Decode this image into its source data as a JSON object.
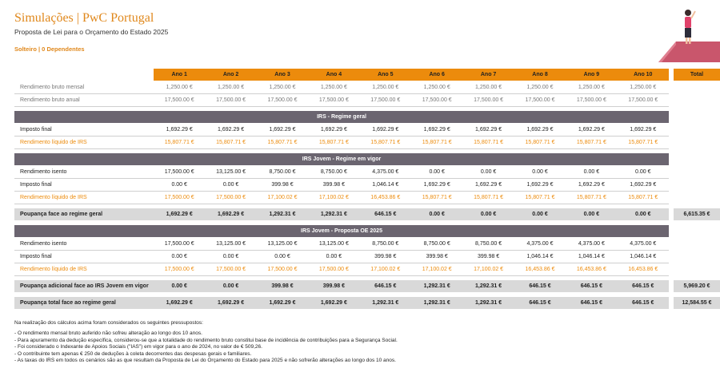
{
  "header": {
    "title": "Simulações | PwC Portugal",
    "subtitle": "Proposta de Lei para o Orçamento do Estado 2025",
    "profile": "Solteiro | 0 Dependentes"
  },
  "table": {
    "columns": [
      "Ano 1",
      "Ano 2",
      "Ano 3",
      "Ano 4",
      "Ano 5",
      "Ano 6",
      "Ano 7",
      "Ano 8",
      "Ano 9",
      "Ano 10"
    ],
    "total_header": "Total",
    "blocks": [
      {
        "rows": [
          {
            "label": "Rendimento bruto mensal",
            "values": [
              "1,250.00 €",
              "1,250.00 €",
              "1,250.00 €",
              "1,250.00 €",
              "1,250.00 €",
              "1,250.00 €",
              "1,250.00 €",
              "1,250.00 €",
              "1,250.00 €",
              "1,250.00 €"
            ]
          },
          {
            "label": "Rendimento bruto anual",
            "values": [
              "17,500.00 €",
              "17,500.00 €",
              "17,500.00 €",
              "17,500.00 €",
              "17,500.00 €",
              "17,500.00 €",
              "17,500.00 €",
              "17,500.00 €",
              "17,500.00 €",
              "17,500.00 €"
            ]
          }
        ]
      },
      {
        "title": "IRS - Regime geral",
        "rows": [
          {
            "label": "Imposto final",
            "values": [
              "1,692.29 €",
              "1,692.29 €",
              "1,692.29 €",
              "1,692.29 €",
              "1,692.29 €",
              "1,692.29 €",
              "1,692.29 €",
              "1,692.29 €",
              "1,692.29 €",
              "1,692.29 €"
            ]
          },
          {
            "label": "Rendimento líquido de IRS",
            "values": [
              "15,807.71 €",
              "15,807.71 €",
              "15,807.71 €",
              "15,807.71 €",
              "15,807.71 €",
              "15,807.71 €",
              "15,807.71 €",
              "15,807.71 €",
              "15,807.71 €",
              "15,807.71 €"
            ]
          }
        ]
      },
      {
        "title": "IRS Jovem - Regime em vigor",
        "rows": [
          {
            "label": "Rendimento isento",
            "values": [
              "17,500.00 €",
              "13,125.00 €",
              "8,750.00 €",
              "8,750.00 €",
              "4,375.00 €",
              "0.00 €",
              "0.00 €",
              "0.00 €",
              "0.00 €",
              "0.00 €"
            ]
          },
          {
            "label": "Imposto final",
            "values": [
              "0.00 €",
              "0.00 €",
              "399.98 €",
              "399.98 €",
              "1,046.14 €",
              "1,692.29 €",
              "1,692.29 €",
              "1,692.29 €",
              "1,692.29 €",
              "1,692.29 €"
            ]
          },
          {
            "label": "Rendimento líquido de IRS",
            "values": [
              "17,500.00 €",
              "17,500.00 €",
              "17,100.02 €",
              "17,100.02 €",
              "16,453.86 €",
              "15,807.71 €",
              "15,807.71 €",
              "15,807.71 €",
              "15,807.71 €",
              "15,807.71 €"
            ]
          }
        ],
        "summary": [
          {
            "label": "Poupança face ao regime geral",
            "values": [
              "1,692.29 €",
              "1,692.29 €",
              "1,292.31 €",
              "1,292.31 €",
              "646.15 €",
              "0.00 €",
              "0.00 €",
              "0.00 €",
              "0.00 €",
              "0.00 €"
            ],
            "total": "6,615.35 €"
          }
        ]
      },
      {
        "title": "IRS Jovem - Proposta OE 2025",
        "rows": [
          {
            "label": "Rendimento isento",
            "values": [
              "17,500.00 €",
              "13,125.00 €",
              "13,125.00 €",
              "13,125.00 €",
              "8,750.00 €",
              "8,750.00 €",
              "8,750.00 €",
              "4,375.00 €",
              "4,375.00 €",
              "4,375.00 €"
            ]
          },
          {
            "label": "Imposto final",
            "values": [
              "0.00 €",
              "0.00 €",
              "0.00 €",
              "0.00 €",
              "399.98 €",
              "399.98 €",
              "399.98 €",
              "1,046.14 €",
              "1,046.14 €",
              "1,046.14 €"
            ]
          },
          {
            "label": "Rendimento líquido de IRS",
            "values": [
              "17,500.00 €",
              "17,500.00 €",
              "17,500.00 €",
              "17,500.00 €",
              "17,100.02 €",
              "17,100.02 €",
              "17,100.02 €",
              "16,453.86 €",
              "16,453.86 €",
              "16,453.86 €"
            ]
          }
        ],
        "summary": [
          {
            "label": "Poupança adicional face ao IRS Jovem em vigor",
            "values": [
              "0.00 €",
              "0.00 €",
              "399.98 €",
              "399.98 €",
              "646.15 €",
              "1,292.31 €",
              "1,292.31 €",
              "646.15 €",
              "646.15 €",
              "646.15 €"
            ],
            "total": "5,969.20 €"
          },
          {
            "label": "Poupança total face ao regime geral",
            "values": [
              "1,692.29 €",
              "1,692.29 €",
              "1,692.29 €",
              "1,692.29 €",
              "1,292.31 €",
              "1,292.31 €",
              "1,292.31 €",
              "646.15 €",
              "646.15 €",
              "646.15 €"
            ],
            "total": "12,584.55 €"
          }
        ]
      }
    ]
  },
  "notes": {
    "intro": "Na realização dos cálculos acima foram considerados os seguintes pressupostos:",
    "items": [
      "- O rendimento mensal bruto auferido não sofreu alteração ao longo dos 10 anos.",
      "- Para apuramento da dedução específica, considerou-se que a totalidade do rendimento bruto constitui base de incidência de contribuições para a Segurança Social.",
      "- Foi considerado o Indexante de Apoios Sociais (\"IAS\") em vigor para o ano de 2024, no valor de € 509,26.",
      "- O contribuinte tem apenas € 250 de deduções à coleta decorrentes das despesas gerais e familiares.",
      "- As taxas do IRS em todos os cenários são as que resultam da Proposta de Lei do Orçamento do Estado para 2025 e não sofrerão alterações ao longo dos 10 anos."
    ]
  }
}
